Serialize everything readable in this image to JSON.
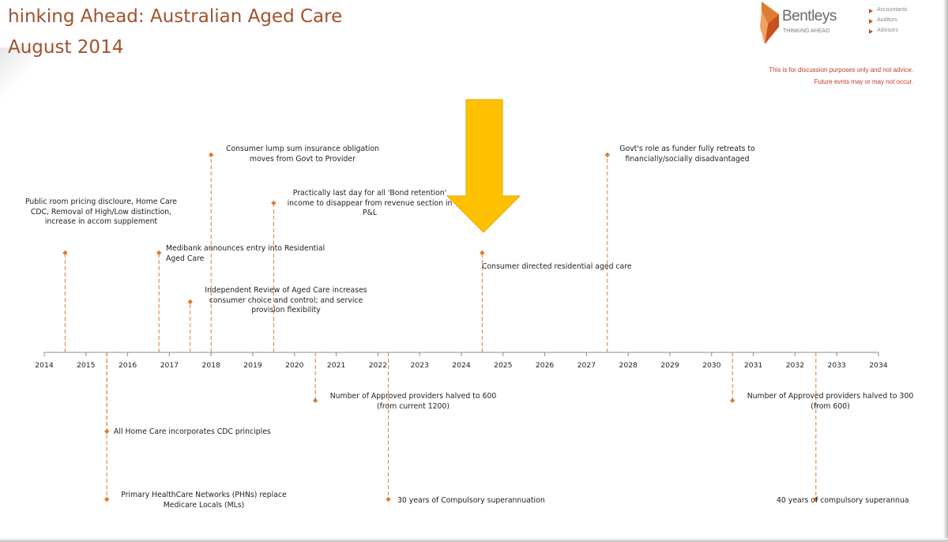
{
  "slide": {
    "title_line1": "hinking Ahead: Australian Aged Care",
    "title_line2": "August 2014"
  },
  "logo": {
    "brand": "Bentleys",
    "tagline": "THINKING AHEAD",
    "services": [
      "Accountants",
      "Auditors",
      "Advisors"
    ],
    "brand_color": "#e07b2f"
  },
  "disclaimer": {
    "line1": "This is for discussion purposes only and not advice.",
    "line2": "Future evnts may or may not occur."
  },
  "timeline": {
    "start_year": 2014,
    "end_year": 2034,
    "years": [
      "2014",
      "2015",
      "2016",
      "2017",
      "2018",
      "2019",
      "2020",
      "2021",
      "2022",
      "2023",
      "2024",
      "2025",
      "2026",
      "2027",
      "2028",
      "2029",
      "2030",
      "2031",
      "2032",
      "2033",
      "2034"
    ],
    "marker_color": "#e07b2f",
    "highlight_color": "#ffc000",
    "highlight_year": 2024.5,
    "events": [
      {
        "year": 2014.5,
        "side": "above",
        "text": [
          "Public room pricing discloure, Home Care",
          "CDC, Removal of High/Low distinction,",
          "increase in accom supplement"
        ]
      },
      {
        "year": 2016.75,
        "side": "above",
        "text": [
          "Medibank announces entry into Residential",
          "Aged Care"
        ]
      },
      {
        "year": 2017.5,
        "side": "above",
        "text": [
          "Independent Review of Aged Care increases",
          "consumer choice and control; and service",
          "provision flexibility"
        ]
      },
      {
        "year": 2018.0,
        "side": "above",
        "text": [
          "Consumer lump sum insurance obligation",
          "moves from Govt to Provider"
        ]
      },
      {
        "year": 2019.5,
        "side": "above",
        "text": [
          "Practically last day for all 'Bond retention'",
          "income to disappear from revenue section in",
          "P&L"
        ]
      },
      {
        "year": 2024.5,
        "side": "above",
        "text": [
          "Consumer directed residential aged care"
        ]
      },
      {
        "year": 2027.5,
        "side": "above",
        "text": [
          "Govt's role as funder fully retreats to",
          "financially/socially disadvantaged"
        ]
      },
      {
        "year": 2015.5,
        "side": "below",
        "text": [
          "All Home Care incorporates CDC principles"
        ]
      },
      {
        "year": 2015.5,
        "side": "below",
        "text": [
          "Primary HealthCare Networks (PHNs) replace",
          "Medicare Locals (MLs)"
        ]
      },
      {
        "year": 2020.5,
        "side": "below",
        "text": [
          "Number of Approved providers halved to 600",
          "(from current 1200)"
        ]
      },
      {
        "year": 2022.25,
        "side": "below",
        "text": [
          "30 years of Compulsory superannuation"
        ]
      },
      {
        "year": 2030.5,
        "side": "below",
        "text": [
          "Number of Approved providers halved to 300",
          "(from 600)"
        ]
      },
      {
        "year": 2032.5,
        "side": "below",
        "text": [
          "40 years of compulsory superannua"
        ]
      }
    ]
  }
}
